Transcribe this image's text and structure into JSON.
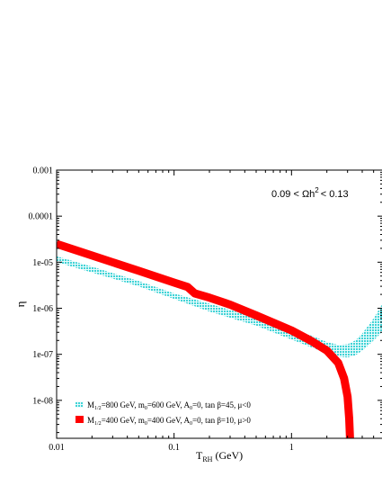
{
  "chart_data": {
    "type": "area",
    "xscale": "log",
    "yscale": "log",
    "xlim": [
      0.01,
      6.0
    ],
    "ylim": [
      1.5e-09,
      0.001
    ],
    "xlabel": {
      "main": "T",
      "sub": "RH",
      "rest": " (GeV)"
    },
    "ylabel": "η",
    "x_ticks": [
      0.01,
      0.1,
      1
    ],
    "x_tick_labels": [
      "0.01",
      "0.1",
      "1"
    ],
    "y_ticks": [
      1e-08,
      1e-07,
      1e-06,
      1e-05,
      0.0001,
      0.001
    ],
    "y_tick_labels": [
      "1e-08",
      "1e-07",
      "1e-06",
      "1e-05",
      "0.0001",
      "0.001"
    ],
    "annotation": {
      "lo": "0.09 < Ωh",
      "sup": "2",
      "hi": "< 0.13"
    },
    "grid": false,
    "legend_position": "bottom-left",
    "series": [
      {
        "name": "M1/2=800 GeV, m0=600 GeV, A0=0, tan β=45, μ<0",
        "style": "band",
        "color": "#4fd9dc",
        "x": [
          0.01,
          0.02,
          0.05,
          0.1,
          0.2,
          0.5,
          1.0,
          1.5,
          2.0,
          2.5,
          3.0,
          3.5,
          4.0,
          5.0,
          6.0
        ],
        "y_upper": [
          1.35e-05,
          8e-06,
          3.9e-06,
          2.1e-06,
          1.25e-06,
          6.2e-07,
          3.5e-07,
          2.5e-07,
          1.85e-07,
          1.6e-07,
          1.65e-07,
          2e-07,
          2.8e-07,
          6e-07,
          1.3e-06
        ],
        "y_lower": [
          1e-05,
          6e-06,
          3e-06,
          1.6e-06,
          8.5e-07,
          4.2e-07,
          2.1e-07,
          1.4e-07,
          1.05e-07,
          9e-08,
          8.5e-08,
          9.5e-08,
          1.2e-07,
          2e-07,
          3.2e-07
        ]
      },
      {
        "name": "M1/2=400 GeV, m0=400 GeV, A0=0, tan β=10, μ>0",
        "style": "thick-line",
        "color": "#ff0000",
        "x": [
          0.01,
          0.02,
          0.05,
          0.1,
          0.13,
          0.15,
          0.2,
          0.3,
          0.5,
          0.8,
          1.0,
          1.5,
          2.0,
          2.5,
          2.8,
          3.0,
          3.1,
          3.15
        ],
        "y": [
          2.5e-05,
          1.4e-05,
          6.5e-06,
          3.6e-06,
          2.9e-06,
          2.1e-06,
          1.7e-06,
          1.2e-06,
          7e-07,
          4.2e-07,
          3.3e-07,
          1.9e-07,
          1.2e-07,
          6.5e-08,
          3e-08,
          1.2e-08,
          4e-09,
          1.5e-09
        ]
      }
    ],
    "legend": [
      {
        "M_main": "M",
        "M_sub": "1/2",
        "M_val": "=800 GeV, m",
        "m_sub": "0",
        "m_val": "=600 GeV, A",
        "A_sub": "0",
        "rest": "=0, tan β=45, μ<0"
      },
      {
        "M_main": "M",
        "M_sub": "1/2",
        "M_val": "=400 GeV, m",
        "m_sub": "0",
        "m_val": "=400 GeV, A",
        "A_sub": "0",
        "rest": "=0, tan β=10, μ>0"
      }
    ]
  }
}
